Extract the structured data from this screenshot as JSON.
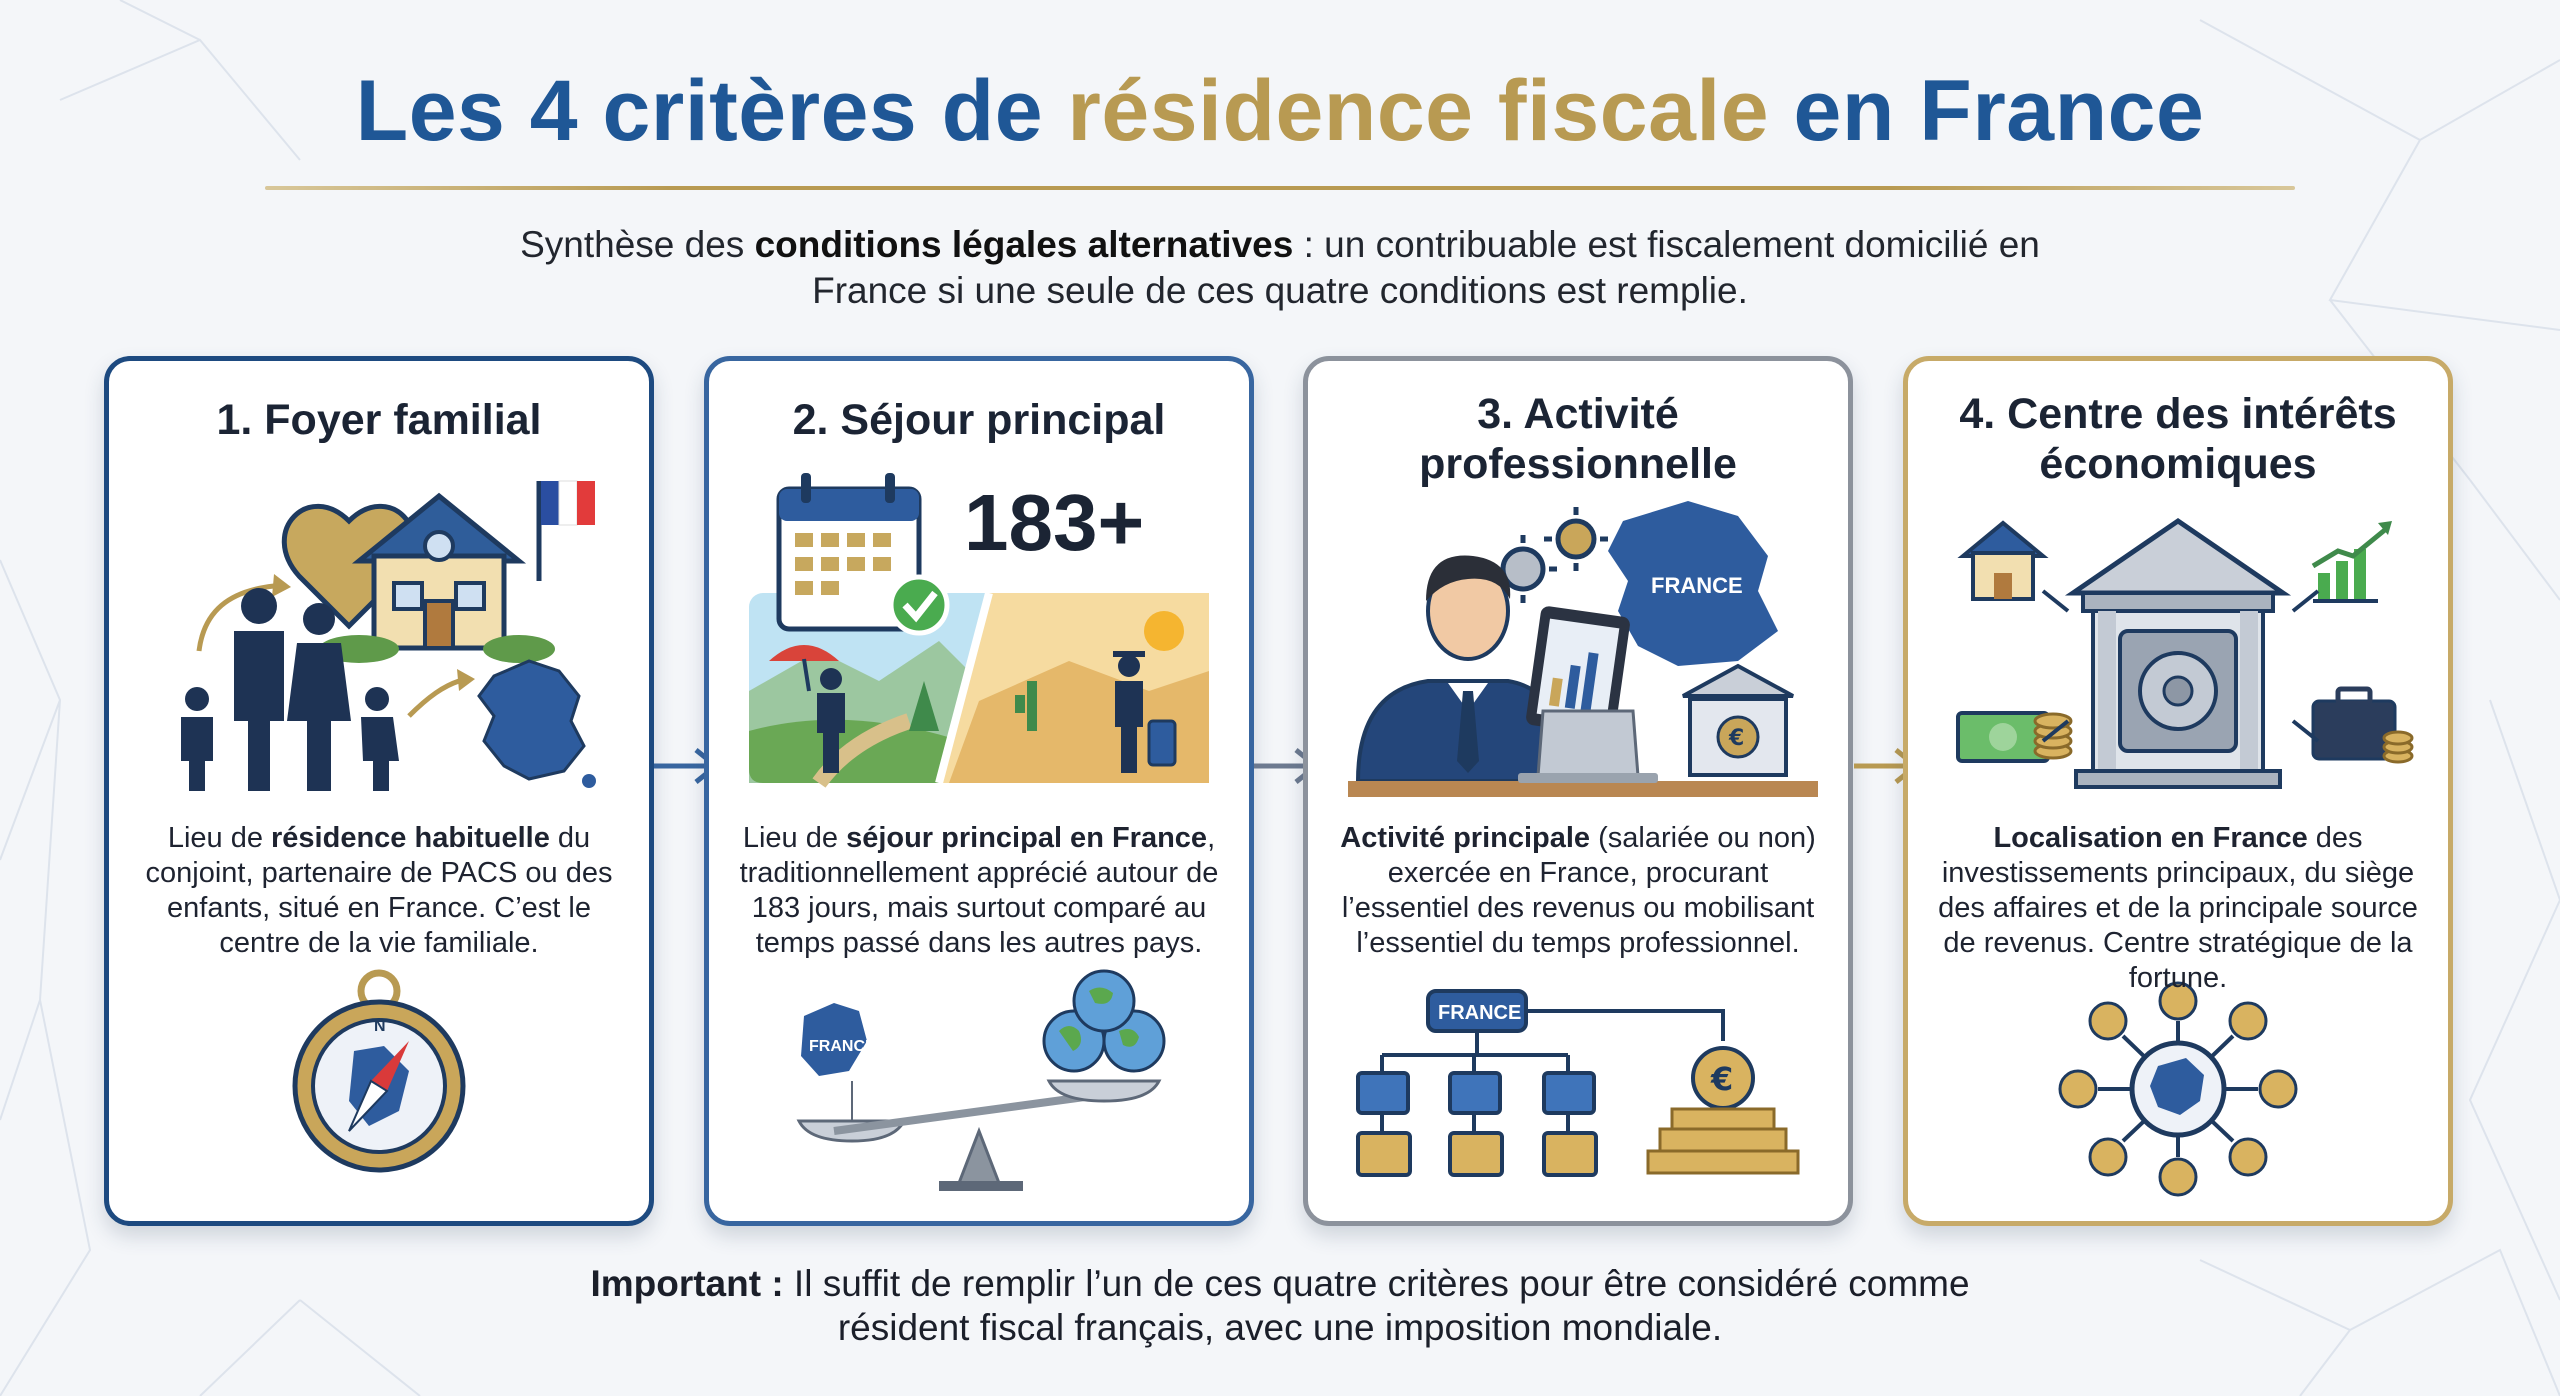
{
  "title": {
    "part1": "Les 4 critères de ",
    "highlight": "résidence fiscale",
    "part2": " en France"
  },
  "subtitle": {
    "pre": "Synthèse des ",
    "bold": "conditions légales alternatives",
    "post": " : un contribuable est fiscalement domicilié en France si une seule de ces quatre conditions est remplie."
  },
  "cards": [
    {
      "title": "1. Foyer familial",
      "text_pre": "Lieu de ",
      "text_bold": "résidence habituelle",
      "text_post": " du conjoint, partenaire de PACS ou des enfants, situé en France. C’est le centre de la vie familiale.",
      "icons": [
        "heart-icon",
        "house-icon",
        "french-flag-icon",
        "family-icon",
        "france-map-icon",
        "compass-icon"
      ]
    },
    {
      "title": "2. Séjour principal",
      "badge": "183+",
      "text_pre": "Lieu de ",
      "text_bold": "séjour principal en France",
      "text_post": ", traditionnellement apprécié autour de 183 jours, mais surtout comparé au temps passé dans les autres pays.",
      "map_label": "FRANCE",
      "icons": [
        "calendar-icon",
        "check-icon",
        "traveler-scene",
        "balance-scale-icon",
        "globes-icon"
      ]
    },
    {
      "title": "3. Activité professionnelle",
      "text_bold": "Activité principale",
      "text_post": " (salariée ou non) exercée en France, procurant l’essentiel des revenus ou mobilisant l’essentiel du temps professionnel.",
      "map_label": "FRANCE",
      "org_label": "FRANCE",
      "icons": [
        "businessman-icon",
        "gears-icon",
        "tablet-chart-icon",
        "laptop-icon",
        "bank-euro-icon",
        "org-chart-icon",
        "coin-stack-icon"
      ]
    },
    {
      "title": "4. Centre des intérêts économiques",
      "text_bold": "Localisation en France",
      "text_post": " des investissements principaux, du siège des affaires et de la principale source de revenus. Centre stratégique de la fortune.",
      "icons": [
        "house-icon",
        "growth-chart-icon",
        "bank-vault-icon",
        "money-icon",
        "briefcase-icon",
        "hub-network-icon"
      ]
    }
  ],
  "footer": {
    "bold": "Important :",
    "rest": " Il suffit de remplir l’un de ces quatre critères pour être considéré comme résident fiscal français, avec une imposition mondiale."
  },
  "colors": {
    "navy": "#1f5796",
    "gold": "#b89a52",
    "card1_border": "#1d4a80",
    "card2_border": "#3866a0",
    "card3_border": "#8c929c",
    "card4_border": "#c7aa68"
  }
}
